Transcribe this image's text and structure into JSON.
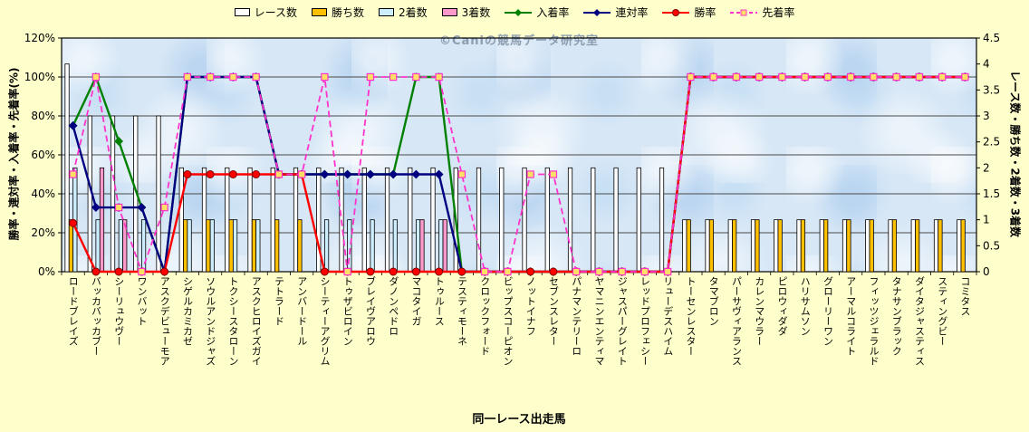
{
  "page": {
    "background": "#FFFFCC",
    "watermark": "©Caniの競馬データ研究室"
  },
  "axes": {
    "left_title": "勝率・連対率・入着率・先着率(%)",
    "right_title": "レース数・勝ち数・2着数・3着数",
    "x_title": "同一レース出走馬",
    "left_ticks": [
      "0%",
      "20%",
      "40%",
      "60%",
      "80%",
      "100%",
      "120%"
    ],
    "right_ticks": [
      "0",
      "0.5",
      "1",
      "1.5",
      "2",
      "2.5",
      "3",
      "3.5",
      "4",
      "4.5"
    ]
  },
  "chart_data": {
    "type": "combo-bar-line",
    "title": "",
    "xlabel": "同一レース出走馬",
    "grid": true,
    "legend_position": "top",
    "plot_background": "#D7E7F6",
    "left_axis": {
      "title": "勝率・連対率・入着率・先着率(%)",
      "min": 0,
      "max": 120,
      "unit": "%"
    },
    "right_axis": {
      "title": "レース数・勝ち数・2着数・3着数",
      "min": 0,
      "max": 4.5
    },
    "categories": [
      "ロードブレイズ",
      "バッカバッカブー",
      "シーリュウヴー",
      "ワンバット",
      "アスクデビューモア",
      "シゲルカミカゼ",
      "ソウルアンドジャズ",
      "トクシースタローン",
      "アスクヒロイズガイ",
      "テトラード",
      "アンバードール",
      "シーティーアグリム",
      "トゥザビロイン",
      "ブレイヴアロウ",
      "ダノンペドロ",
      "マコタイガ",
      "トゥルース",
      "テスティモーネ",
      "クロックフォード",
      "ビップスコーピオン",
      "ノットイナフ",
      "セブンスレター",
      "パナマンテリーロ",
      "ヤマニンエンティマ",
      "ジャスパーグレイト",
      "レッドプロフェシー",
      "リューデスハイム",
      "トーセンレスター",
      "タマブロン",
      "パーサヴィアランス",
      "カレンマウラー",
      "ピロウィダダ",
      "ハリサムソン",
      "グローリーワン",
      "アーマルコライト",
      "フィッツジェラルド",
      "タナサンブラック",
      "ダイタジャスティス",
      "スティングビー",
      "コミタス"
    ],
    "series": [
      {
        "name": "レース数",
        "type": "bar",
        "axis": "right",
        "color": "#FFFFFF",
        "values": [
          4,
          3,
          3,
          3,
          3,
          2,
          2,
          2,
          2,
          2,
          2,
          2,
          2,
          2,
          2,
          2,
          2,
          2,
          2,
          2,
          2,
          2,
          2,
          2,
          2,
          2,
          2,
          1,
          1,
          1,
          1,
          1,
          1,
          1,
          1,
          1,
          1,
          1,
          1,
          1
        ]
      },
      {
        "name": "勝ち数",
        "type": "bar",
        "axis": "right",
        "color": "#FFC000",
        "values": [
          1,
          0,
          0,
          0,
          0,
          1,
          1,
          1,
          1,
          1,
          1,
          0,
          0,
          0,
          0,
          0,
          0,
          0,
          0,
          0,
          0,
          0,
          0,
          0,
          0,
          0,
          0,
          1,
          1,
          1,
          1,
          1,
          1,
          1,
          1,
          1,
          1,
          1,
          1,
          1
        ]
      },
      {
        "name": "2着数",
        "type": "bar",
        "axis": "right",
        "color": "#CCEEFF",
        "values": [
          2,
          1,
          1,
          1,
          0,
          1,
          1,
          1,
          1,
          0,
          0,
          1,
          1,
          1,
          1,
          1,
          1,
          0,
          0,
          0,
          0,
          0,
          0,
          0,
          0,
          0,
          0,
          0,
          0,
          0,
          0,
          0,
          0,
          0,
          0,
          0,
          0,
          0,
          0,
          0
        ]
      },
      {
        "name": "3着数",
        "type": "bar",
        "axis": "right",
        "color": "#FF99CC",
        "values": [
          0,
          2,
          1,
          0,
          0,
          0,
          0,
          0,
          0,
          0,
          0,
          0,
          0,
          0,
          0,
          1,
          1,
          0,
          0,
          0,
          0,
          0,
          0,
          0,
          0,
          0,
          0,
          0,
          0,
          0,
          0,
          0,
          0,
          0,
          0,
          0,
          0,
          0,
          0,
          0
        ]
      },
      {
        "name": "入着率",
        "type": "line",
        "axis": "left",
        "color": "#008000",
        "marker": "diamond",
        "values": [
          75,
          100,
          67,
          33,
          0,
          100,
          100,
          100,
          100,
          50,
          50,
          50,
          50,
          50,
          50,
          100,
          100,
          0,
          0,
          0,
          0,
          0,
          0,
          0,
          0,
          0,
          0,
          100,
          100,
          100,
          100,
          100,
          100,
          100,
          100,
          100,
          100,
          100,
          100,
          100
        ]
      },
      {
        "name": "連対率",
        "type": "line",
        "axis": "left",
        "color": "#000080",
        "marker": "diamond",
        "values": [
          75,
          33,
          33,
          33,
          0,
          100,
          100,
          100,
          100,
          50,
          50,
          50,
          50,
          50,
          50,
          50,
          50,
          0,
          0,
          0,
          0,
          0,
          0,
          0,
          0,
          0,
          0,
          100,
          100,
          100,
          100,
          100,
          100,
          100,
          100,
          100,
          100,
          100,
          100,
          100
        ]
      },
      {
        "name": "勝率",
        "type": "line",
        "axis": "left",
        "color": "#FF0000",
        "marker": "circle",
        "marker_fill": "#FF0000",
        "values": [
          25,
          0,
          0,
          0,
          0,
          50,
          50,
          50,
          50,
          50,
          50,
          0,
          0,
          0,
          0,
          0,
          0,
          0,
          0,
          0,
          0,
          0,
          0,
          0,
          0,
          0,
          0,
          100,
          100,
          100,
          100,
          100,
          100,
          100,
          100,
          100,
          100,
          100,
          100,
          100
        ]
      },
      {
        "name": "先着率",
        "type": "line",
        "axis": "left",
        "color": "#FF33CC",
        "marker": "square",
        "marker_fill": "#FFE066",
        "dash": true,
        "values": [
          50,
          100,
          33,
          0,
          33,
          100,
          100,
          100,
          100,
          50,
          50,
          100,
          0,
          100,
          100,
          100,
          100,
          50,
          0,
          0,
          50,
          50,
          0,
          0,
          0,
          0,
          0,
          100,
          100,
          100,
          100,
          100,
          100,
          100,
          100,
          100,
          100,
          100,
          100,
          100
        ]
      }
    ]
  }
}
